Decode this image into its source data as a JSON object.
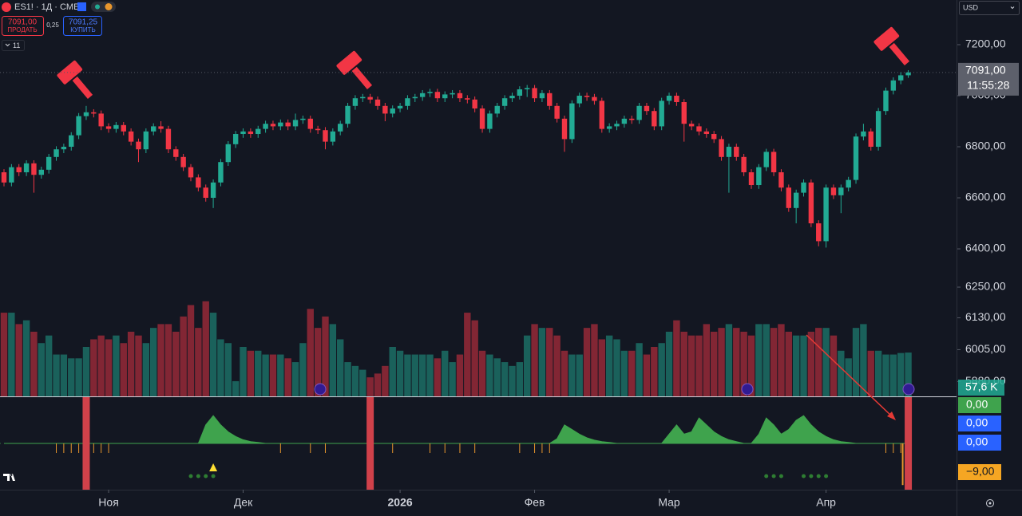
{
  "header": {
    "symbol": "ES1! · 1Д · CME",
    "sell_price": "7091,00",
    "sell_label": "ПРОДАТЬ",
    "spread": "0,25",
    "buy_price": "7091,25",
    "buy_label": "КУПИТЬ",
    "indicators_count": "11",
    "currency": "USD"
  },
  "chart_data": {
    "type": "candlestick",
    "colors": {
      "up": "#22ab94",
      "down": "#f23645",
      "area": "#3fa34d",
      "tick": "#e8962d",
      "dot": "#2e7d32",
      "triangle": "#ffe033"
    },
    "ylim": [
      5822,
      7375
    ],
    "yticks": [
      {
        "value": 7200,
        "label": "7200,00"
      },
      {
        "value": 7000,
        "label": "7000,00"
      },
      {
        "value": 6800,
        "label": "6800,00"
      },
      {
        "value": 6600,
        "label": "6600,00"
      },
      {
        "value": 6400,
        "label": "6400,00"
      },
      {
        "value": 6250,
        "label": "6250,00"
      },
      {
        "value": 6130,
        "label": "6130,00"
      },
      {
        "value": 6005,
        "label": "6005,00"
      },
      {
        "value": 5880,
        "label": "5880,00"
      }
    ],
    "xticks": [
      {
        "value": 14,
        "label": "Ноя"
      },
      {
        "value": 32,
        "label": "Дек"
      },
      {
        "value": 53,
        "label": "2026"
      },
      {
        "value": 71,
        "label": "Фев"
      },
      {
        "value": 89,
        "label": "Мар"
      },
      {
        "value": 110,
        "label": "Апр"
      }
    ],
    "last_price": {
      "value": 7091,
      "label": "7091,00"
    },
    "countdown": "11:55:28",
    "candles": [
      [
        6700,
        6712,
        6645,
        6660
      ],
      [
        6660,
        6732,
        6645,
        6720
      ],
      [
        6720,
        6732,
        6685,
        6700
      ],
      [
        6700,
        6747,
        6685,
        6735
      ],
      [
        6735,
        6747,
        6620,
        6690
      ],
      [
        6690,
        6722,
        6675,
        6710
      ],
      [
        6710,
        6772,
        6695,
        6760
      ],
      [
        6760,
        6802,
        6745,
        6790
      ],
      [
        6790,
        6812,
        6775,
        6800
      ],
      [
        6800,
        6857,
        6785,
        6845
      ],
      [
        6845,
        6932,
        6830,
        6920
      ],
      [
        6920,
        6960,
        6905,
        6935
      ],
      [
        6935,
        6947,
        6915,
        6930
      ],
      [
        6930,
        6942,
        6865,
        6880
      ],
      [
        6880,
        6892,
        6855,
        6870
      ],
      [
        6870,
        6897,
        6855,
        6885
      ],
      [
        6885,
        6897,
        6845,
        6860
      ],
      [
        6860,
        6872,
        6805,
        6820
      ],
      [
        6820,
        6832,
        6740,
        6790
      ],
      [
        6790,
        6872,
        6775,
        6860
      ],
      [
        6860,
        6892,
        6845,
        6880
      ],
      [
        6880,
        6900,
        6855,
        6870
      ],
      [
        6870,
        6882,
        6775,
        6790
      ],
      [
        6790,
        6802,
        6745,
        6760
      ],
      [
        6760,
        6772,
        6705,
        6720
      ],
      [
        6720,
        6732,
        6665,
        6680
      ],
      [
        6680,
        6692,
        6625,
        6640
      ],
      [
        6640,
        6652,
        6585,
        6600
      ],
      [
        6600,
        6672,
        6560,
        6660
      ],
      [
        6660,
        6752,
        6645,
        6740
      ],
      [
        6740,
        6822,
        6725,
        6810
      ],
      [
        6810,
        6862,
        6795,
        6850
      ],
      [
        6850,
        6872,
        6835,
        6860
      ],
      [
        6860,
        6872,
        6835,
        6850
      ],
      [
        6850,
        6882,
        6835,
        6870
      ],
      [
        6870,
        6902,
        6855,
        6890
      ],
      [
        6890,
        6902,
        6865,
        6880
      ],
      [
        6880,
        6907,
        6865,
        6895
      ],
      [
        6895,
        6907,
        6865,
        6880
      ],
      [
        6880,
        6930,
        6865,
        6905
      ],
      [
        6905,
        6922,
        6890,
        6910
      ],
      [
        6910,
        6922,
        6855,
        6870
      ],
      [
        6870,
        6882,
        6850,
        6865
      ],
      [
        6865,
        6877,
        6790,
        6820
      ],
      [
        6820,
        6872,
        6805,
        6860
      ],
      [
        6860,
        6902,
        6845,
        6890
      ],
      [
        6890,
        6972,
        6875,
        6960
      ],
      [
        6960,
        7002,
        6945,
        6990
      ],
      [
        6990,
        7007,
        6975,
        6995
      ],
      [
        6995,
        7007,
        6970,
        6985
      ],
      [
        6985,
        6997,
        6945,
        6960
      ],
      [
        6960,
        6972,
        6900,
        6930
      ],
      [
        6930,
        6962,
        6915,
        6950
      ],
      [
        6950,
        6972,
        6935,
        6960
      ],
      [
        6960,
        7002,
        6945,
        6990
      ],
      [
        6990,
        7007,
        6975,
        6995
      ],
      [
        6995,
        7022,
        6980,
        7010
      ],
      [
        7010,
        7027,
        6995,
        7015
      ],
      [
        7015,
        7027,
        6975,
        6990
      ],
      [
        6990,
        7017,
        6975,
        7005
      ],
      [
        7005,
        7022,
        6990,
        7010
      ],
      [
        7010,
        7022,
        6975,
        6990
      ],
      [
        6990,
        7002,
        6970,
        6985
      ],
      [
        6985,
        6997,
        6935,
        6950
      ],
      [
        6950,
        6962,
        6855,
        6870
      ],
      [
        6870,
        6942,
        6855,
        6930
      ],
      [
        6930,
        6972,
        6915,
        6960
      ],
      [
        6960,
        7002,
        6945,
        6990
      ],
      [
        6990,
        7012,
        6975,
        7000
      ],
      [
        7000,
        7037,
        6985,
        7025
      ],
      [
        7025,
        7042,
        6995,
        7030
      ],
      [
        7030,
        7042,
        6975,
        6990
      ],
      [
        6990,
        7022,
        6975,
        7010
      ],
      [
        7010,
        7022,
        6945,
        6960
      ],
      [
        6960,
        6972,
        6895,
        6910
      ],
      [
        6910,
        6922,
        6780,
        6830
      ],
      [
        6830,
        6982,
        6815,
        6970
      ],
      [
        6970,
        7012,
        6955,
        7000
      ],
      [
        7000,
        7012,
        6980,
        6995
      ],
      [
        6995,
        7007,
        6965,
        6980
      ],
      [
        6980,
        6992,
        6855,
        6870
      ],
      [
        6870,
        6892,
        6855,
        6880
      ],
      [
        6880,
        6902,
        6865,
        6890
      ],
      [
        6890,
        6922,
        6875,
        6910
      ],
      [
        6910,
        6922,
        6890,
        6905
      ],
      [
        6905,
        6972,
        6890,
        6960
      ],
      [
        6960,
        6972,
        6925,
        6940
      ],
      [
        6940,
        6952,
        6865,
        6880
      ],
      [
        6880,
        6992,
        6865,
        6980
      ],
      [
        6980,
        7012,
        6965,
        7000
      ],
      [
        7000,
        7012,
        6960,
        6975
      ],
      [
        6975,
        6987,
        6820,
        6890
      ],
      [
        6890,
        6902,
        6865,
        6880
      ],
      [
        6880,
        6892,
        6845,
        6860
      ],
      [
        6860,
        6872,
        6835,
        6850
      ],
      [
        6850,
        6862,
        6815,
        6830
      ],
      [
        6830,
        6842,
        6745,
        6760
      ],
      [
        6760,
        6812,
        6620,
        6800
      ],
      [
        6800,
        6812,
        6745,
        6760
      ],
      [
        6760,
        6772,
        6685,
        6700
      ],
      [
        6700,
        6712,
        6635,
        6650
      ],
      [
        6650,
        6732,
        6635,
        6720
      ],
      [
        6720,
        6792,
        6705,
        6780
      ],
      [
        6780,
        6792,
        6685,
        6700
      ],
      [
        6700,
        6712,
        6625,
        6640
      ],
      [
        6640,
        6652,
        6545,
        6560
      ],
      [
        6560,
        6632,
        6500,
        6620
      ],
      [
        6620,
        6672,
        6605,
        6660
      ],
      [
        6660,
        6672,
        6485,
        6500
      ],
      [
        6500,
        6512,
        6410,
        6430
      ],
      [
        6430,
        6652,
        6405,
        6640
      ],
      [
        6640,
        6652,
        6595,
        6610
      ],
      [
        6610,
        6652,
        6540,
        6640
      ],
      [
        6640,
        6682,
        6625,
        6670
      ],
      [
        6670,
        6852,
        6655,
        6840
      ],
      [
        6840,
        6890,
        6825,
        6860
      ],
      [
        6860,
        6872,
        6785,
        6800
      ],
      [
        6800,
        6952,
        6785,
        6940
      ],
      [
        6940,
        7032,
        6925,
        7020
      ],
      [
        7020,
        7072,
        7005,
        7060
      ],
      [
        7060,
        7092,
        7045,
        7080
      ],
      [
        7080,
        7100,
        7070,
        7091
      ]
    ],
    "volume": {
      "ylim": [
        0,
        130
      ],
      "last_label": "57,6 K",
      "values": [
        110,
        110,
        95,
        100,
        85,
        70,
        80,
        55,
        55,
        50,
        50,
        65,
        75,
        80,
        75,
        80,
        70,
        85,
        80,
        70,
        90,
        95,
        95,
        85,
        105,
        120,
        90,
        125,
        110,
        75,
        70,
        20,
        65,
        60,
        60,
        55,
        55,
        55,
        50,
        45,
        70,
        115,
        90,
        105,
        95,
        75,
        45,
        40,
        35,
        25,
        30,
        40,
        65,
        60,
        55,
        55,
        55,
        55,
        50,
        60,
        45,
        55,
        110,
        100,
        60,
        55,
        50,
        45,
        40,
        45,
        80,
        95,
        90,
        90,
        80,
        60,
        55,
        55,
        90,
        95,
        75,
        80,
        75,
        60,
        60,
        70,
        55,
        65,
        70,
        85,
        100,
        85,
        80,
        80,
        95,
        85,
        90,
        95,
        90,
        85,
        80,
        95,
        95,
        90,
        95,
        85,
        80,
        80,
        85,
        90,
        90,
        80,
        60,
        50,
        90,
        95,
        60,
        60,
        55,
        55,
        57,
        57.6
      ]
    },
    "indicator": {
      "ylim": [
        -10,
        10
      ],
      "osc": [
        0,
        0,
        0,
        0,
        0,
        0,
        0,
        0,
        0,
        0,
        0,
        0,
        0,
        0,
        0,
        0,
        0,
        0,
        0,
        0,
        0,
        0,
        0,
        0,
        0,
        0,
        0,
        4,
        6,
        4,
        2.5,
        1.5,
        0.8,
        0.4,
        0.2,
        0,
        0,
        0,
        0,
        0,
        0,
        0,
        0,
        0,
        0,
        0,
        0,
        0,
        0,
        0,
        0,
        0,
        0,
        0,
        0,
        0,
        0,
        0,
        0,
        0,
        0,
        0,
        0,
        0,
        0,
        0,
        0,
        0,
        0,
        0,
        0,
        0,
        0,
        0,
        1,
        4,
        3,
        2,
        1.2,
        0.7,
        0.4,
        0.2,
        0,
        0,
        0,
        0,
        0,
        0,
        0,
        2,
        4,
        2,
        2.5,
        5.5,
        4,
        2.5,
        1.5,
        0.8,
        0.4,
        0,
        0,
        2,
        5.5,
        4,
        2,
        3,
        5,
        6,
        4,
        2.5,
        1.5,
        0.8,
        0.4,
        0.2,
        0,
        0,
        0,
        0,
        0,
        0,
        0,
        0
      ],
      "signals": [
        11,
        49,
        121
      ],
      "down_ticks": [
        7,
        8,
        9,
        10,
        11,
        12,
        13,
        14,
        37,
        41,
        43,
        52,
        57,
        59,
        61,
        63,
        69,
        71,
        72,
        73,
        118,
        119,
        120
      ],
      "dots": [
        25,
        26,
        27,
        28,
        102,
        103,
        104,
        107,
        108,
        109,
        110
      ],
      "triangle": 28,
      "last": [
        0,
        0,
        0,
        -9
      ],
      "last_labels": [
        "0,00",
        "0,00",
        "0,00",
        "−9,00"
      ]
    }
  }
}
